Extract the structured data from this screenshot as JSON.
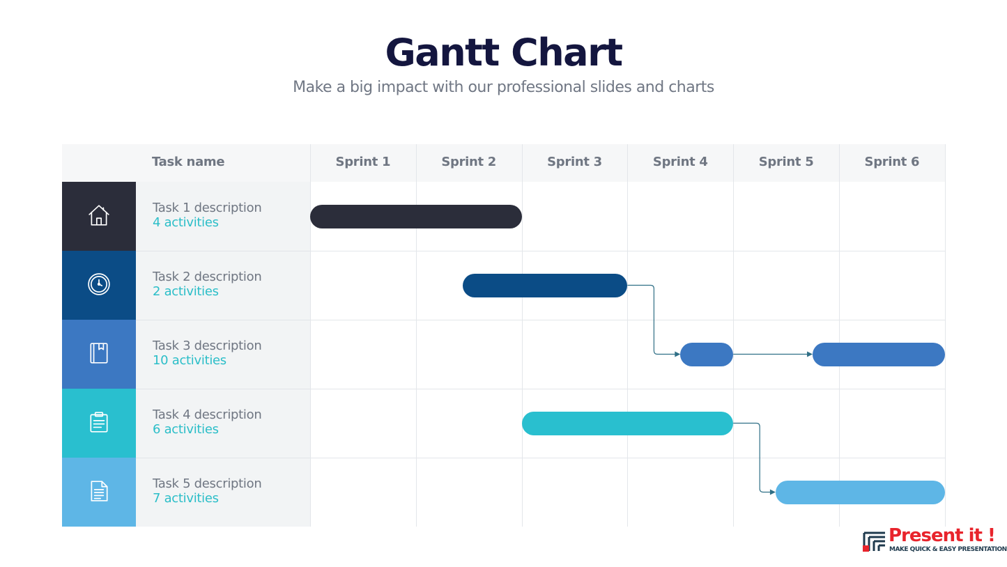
{
  "title": "Gantt Chart",
  "subtitle": "Make a big impact with our professional slides and charts",
  "chart_data": {
    "type": "gantt",
    "task_column_label": "Task name",
    "periods": [
      "Sprint 1",
      "Sprint 2",
      "Sprint 3",
      "Sprint 4",
      "Sprint 5",
      "Sprint 6"
    ],
    "tasks": [
      {
        "name": "Task 1 description",
        "activities": "4 activities",
        "icon": "home-icon",
        "color": "#2b2d3a",
        "bars": [
          {
            "start": 0,
            "end": 2
          }
        ]
      },
      {
        "name": "Task 2 description",
        "activities": "2 activities",
        "icon": "clock-icon",
        "color": "#0b4c86",
        "bars": [
          {
            "start": 1.44,
            "end": 3
          }
        ]
      },
      {
        "name": "Task 3 description",
        "activities": "10 activities",
        "icon": "book-icon",
        "color": "#3c78c2",
        "bars": [
          {
            "start": 3.5,
            "end": 4
          },
          {
            "start": 4.75,
            "end": 6
          }
        ]
      },
      {
        "name": "Task 4 description",
        "activities": "6 activities",
        "icon": "clipboard-icon",
        "color": "#29bfcf",
        "bars": [
          {
            "start": 2,
            "end": 4
          }
        ]
      },
      {
        "name": "Task 5 description",
        "activities": "7 activities",
        "icon": "document-icon",
        "color": "#5eb6e6",
        "bars": [
          {
            "start": 4.4,
            "end": 6
          }
        ]
      }
    ],
    "dependencies": [
      {
        "from": [
          1,
          0
        ],
        "to": [
          2,
          0
        ]
      },
      {
        "from": [
          2,
          0
        ],
        "to": [
          2,
          1
        ]
      },
      {
        "from": [
          3,
          0
        ],
        "to": [
          4,
          0
        ]
      }
    ]
  },
  "logo": {
    "name": "Present it !",
    "tagline": "MAKE QUICK & EASY PRESENTATIONS"
  }
}
